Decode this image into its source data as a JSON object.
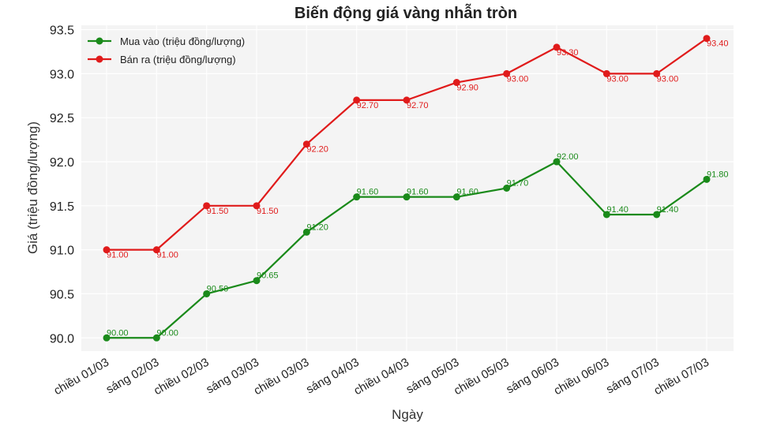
{
  "chart_data": {
    "type": "line",
    "title": "Biến động giá vàng nhẫn tròn",
    "xlabel": "Ngày",
    "ylabel": "Giá (triệu đồng/lượng)",
    "ylim": [
      89.85,
      93.55
    ],
    "yticks": [
      "90.0",
      "90.5",
      "91.0",
      "91.5",
      "92.0",
      "92.5",
      "93.0",
      "93.5"
    ],
    "grid": true,
    "legend_position": "top-left",
    "categories": [
      "chiều 01/03",
      "sáng 02/03",
      "chiều 02/03",
      "sáng 03/03",
      "chiều 03/03",
      "sáng 04/03",
      "chiều 04/03",
      "sáng 05/03",
      "chiều 05/03",
      "sáng 06/03",
      "chiều 06/03",
      "sáng 07/03",
      "chiều 07/03"
    ],
    "series": [
      {
        "name": "Mua vào (triệu đồng/lượng)",
        "color": "#1a8a1a",
        "values": [
          90.0,
          90.0,
          90.5,
          90.65,
          91.2,
          91.6,
          91.6,
          91.6,
          91.7,
          92.0,
          91.4,
          91.4,
          91.8
        ],
        "labels": [
          "90.00",
          "90.00",
          "90.50",
          "90.65",
          "91.20",
          "91.60",
          "91.60",
          "91.60",
          "91.70",
          "92.00",
          "91.40",
          "91.40",
          "91.80"
        ]
      },
      {
        "name": "Bán ra (triệu đồng/lượng)",
        "color": "#e01b1b",
        "values": [
          91.0,
          91.0,
          91.5,
          91.5,
          92.2,
          92.7,
          92.7,
          92.9,
          93.0,
          93.3,
          93.0,
          93.0,
          93.4
        ],
        "labels": [
          "91.00",
          "91.00",
          "91.50",
          "91.50",
          "92.20",
          "92.70",
          "92.70",
          "92.90",
          "93.00",
          "93.30",
          "93.00",
          "93.00",
          "93.40"
        ]
      }
    ]
  }
}
